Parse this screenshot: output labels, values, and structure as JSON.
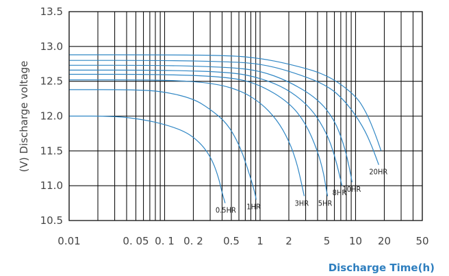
{
  "chart_data": {
    "type": "line",
    "title": "",
    "xlabel": "Discharge Time(h)",
    "ylabel": "(V) Discharge voltage",
    "x_scale": "log",
    "xlim": [
      0.01,
      50
    ],
    "ylim": [
      10.5,
      13.5
    ],
    "grid": true,
    "line_color": "#2f86c4",
    "x_ticks": [
      {
        "value": 0.01,
        "label": "0.01"
      },
      {
        "value": 0.05,
        "label": "0. 05"
      },
      {
        "value": 0.1,
        "label": "0. 1"
      },
      {
        "value": 0.2,
        "label": "0. 2"
      },
      {
        "value": 0.5,
        "label": "0.5"
      },
      {
        "value": 1,
        "label": "1"
      },
      {
        "value": 2,
        "label": "2"
      },
      {
        "value": 5,
        "label": "5"
      },
      {
        "value": 10,
        "label": "10"
      },
      {
        "value": 20,
        "label": "20"
      },
      {
        "value": 50,
        "label": "50"
      }
    ],
    "y_ticks": [
      {
        "value": 13.5,
        "label": "13.5"
      },
      {
        "value": 13.0,
        "label": "13.0"
      },
      {
        "value": 12.5,
        "label": "12.5"
      },
      {
        "value": 12.0,
        "label": "12.0"
      },
      {
        "value": 11.5,
        "label": "11.5"
      },
      {
        "value": 11.0,
        "label": "11.0"
      },
      {
        "value": 10.5,
        "label": "10.5"
      }
    ],
    "series": [
      {
        "name": "0.5HR",
        "points": [
          [
            0.01,
            12.0
          ],
          [
            0.03,
            12.0
          ],
          [
            0.06,
            11.95
          ],
          [
            0.1,
            11.88
          ],
          [
            0.15,
            11.8
          ],
          [
            0.2,
            11.7
          ],
          [
            0.26,
            11.55
          ],
          [
            0.32,
            11.35
          ],
          [
            0.37,
            11.1
          ],
          [
            0.4,
            10.9
          ],
          [
            0.43,
            10.75
          ]
        ]
      },
      {
        "name": "1HR",
        "points": [
          [
            0.01,
            12.38
          ],
          [
            0.05,
            12.38
          ],
          [
            0.1,
            12.35
          ],
          [
            0.2,
            12.25
          ],
          [
            0.3,
            12.1
          ],
          [
            0.45,
            11.9
          ],
          [
            0.6,
            11.6
          ],
          [
            0.72,
            11.3
          ],
          [
            0.82,
            11.05
          ],
          [
            0.88,
            10.9
          ],
          [
            0.91,
            10.8
          ]
        ]
      },
      {
        "name": "3HR",
        "points": [
          [
            0.01,
            12.52
          ],
          [
            0.1,
            12.52
          ],
          [
            0.3,
            12.48
          ],
          [
            0.6,
            12.38
          ],
          [
            1.0,
            12.2
          ],
          [
            1.5,
            11.95
          ],
          [
            2.0,
            11.65
          ],
          [
            2.4,
            11.35
          ],
          [
            2.7,
            11.05
          ],
          [
            2.9,
            10.85
          ]
        ]
      },
      {
        "name": "5HR",
        "points": [
          [
            0.01,
            12.6
          ],
          [
            0.1,
            12.6
          ],
          [
            0.5,
            12.56
          ],
          [
            1.0,
            12.45
          ],
          [
            2.0,
            12.2
          ],
          [
            3.0,
            11.9
          ],
          [
            4.0,
            11.5
          ],
          [
            4.6,
            11.2
          ],
          [
            5.0,
            10.9
          ],
          [
            5.1,
            10.85
          ]
        ]
      },
      {
        "name": "8HR",
        "points": [
          [
            0.01,
            12.66
          ],
          [
            0.1,
            12.66
          ],
          [
            0.5,
            12.63
          ],
          [
            1.0,
            12.55
          ],
          [
            2.0,
            12.38
          ],
          [
            3.5,
            12.1
          ],
          [
            5.0,
            11.75
          ],
          [
            6.0,
            11.45
          ],
          [
            6.8,
            11.15
          ],
          [
            7.2,
            11.0
          ]
        ]
      },
      {
        "name": "10HR",
        "points": [
          [
            0.01,
            12.73
          ],
          [
            0.1,
            12.73
          ],
          [
            0.5,
            12.7
          ],
          [
            1.0,
            12.65
          ],
          [
            2.0,
            12.5
          ],
          [
            4.0,
            12.25
          ],
          [
            6.0,
            11.95
          ],
          [
            7.5,
            11.6
          ],
          [
            8.5,
            11.3
          ],
          [
            9.2,
            11.05
          ]
        ]
      },
      {
        "name": "20HR",
        "points": [
          [
            0.01,
            12.8
          ],
          [
            0.1,
            12.8
          ],
          [
            0.5,
            12.78
          ],
          [
            1.0,
            12.75
          ],
          [
            2.0,
            12.65
          ],
          [
            5.0,
            12.45
          ],
          [
            8.0,
            12.2
          ],
          [
            12.0,
            11.85
          ],
          [
            15.0,
            11.55
          ],
          [
            17.5,
            11.3
          ]
        ]
      },
      {
        "name": "",
        "points": [
          [
            0.01,
            12.88
          ],
          [
            0.1,
            12.88
          ],
          [
            0.5,
            12.87
          ],
          [
            1.0,
            12.83
          ],
          [
            2.0,
            12.75
          ],
          [
            5.0,
            12.6
          ],
          [
            10.0,
            12.3
          ],
          [
            13.0,
            12.05
          ],
          [
            16.0,
            11.75
          ],
          [
            18.5,
            11.5
          ]
        ]
      }
    ]
  }
}
